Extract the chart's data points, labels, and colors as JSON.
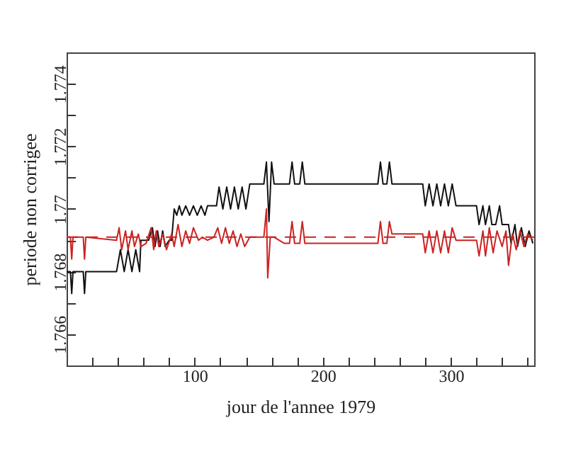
{
  "chart_data": {
    "type": "line",
    "xlabel": "jour de l'annee 1979",
    "ylabel": "periode non corrigee",
    "xlim": [
      0,
      365
    ],
    "ylim": [
      1.765,
      1.775
    ],
    "xticks": [
      {
        "value": 20,
        "label": null
      },
      {
        "value": 40,
        "label": null
      },
      {
        "value": 60,
        "label": null
      },
      {
        "value": 80,
        "label": null
      },
      100,
      {
        "value": 120,
        "label": null
      },
      {
        "value": 140,
        "label": null
      },
      {
        "value": 160,
        "label": null
      },
      {
        "value": 180,
        "label": null
      },
      200,
      {
        "value": 220,
        "label": null
      },
      {
        "value": 240,
        "label": null
      },
      {
        "value": 260,
        "label": null
      },
      {
        "value": 280,
        "label": null
      },
      300,
      {
        "value": 320,
        "label": null
      },
      {
        "value": 340,
        "label": null
      },
      {
        "value": 360,
        "label": null
      }
    ],
    "yticks": [
      1.766,
      {
        "value": 1.767,
        "label": null
      },
      1.768,
      {
        "value": 1.769,
        "label": null
      },
      {
        "value": 1.77,
        "label": "1.77"
      },
      {
        "value": 1.771,
        "label": null
      },
      1.772,
      {
        "value": 1.773,
        "label": null
      },
      1.774
    ],
    "grid": false,
    "marker": "none",
    "line_style": "solid",
    "series": [
      {
        "color": "#111111",
        "x": [
          0,
          3,
          4,
          5,
          13,
          14,
          15,
          39,
          42,
          45,
          48,
          51,
          54,
          57,
          58,
          64,
          67,
          69,
          71,
          73,
          75,
          77,
          80,
          82,
          84,
          86,
          88,
          90,
          93,
          96,
          99,
          102,
          105,
          108,
          110,
          117,
          119,
          122,
          125,
          128,
          131,
          134,
          137,
          140,
          143,
          154,
          156,
          158,
          160,
          162,
          174,
          176,
          178,
          182,
          184,
          186,
          243,
          245,
          247,
          250,
          252,
          254,
          278,
          280,
          283,
          286,
          289,
          292,
          295,
          298,
          301,
          304,
          320,
          322,
          325,
          327,
          330,
          332,
          335,
          338,
          340,
          345,
          347,
          350,
          352,
          355,
          358,
          361,
          364
        ],
        "values": [
          1.768,
          1.768,
          1.7673,
          1.768,
          1.768,
          1.7673,
          1.768,
          1.768,
          1.7687,
          1.768,
          1.7687,
          1.768,
          1.7687,
          1.768,
          1.769,
          1.769,
          1.7694,
          1.7688,
          1.7693,
          1.7688,
          1.7693,
          1.7688,
          1.769,
          1.769,
          1.77,
          1.7698,
          1.7701,
          1.7698,
          1.7701,
          1.7698,
          1.7701,
          1.7698,
          1.7701,
          1.7698,
          1.7701,
          1.7701,
          1.7707,
          1.77,
          1.7707,
          1.77,
          1.7707,
          1.77,
          1.7707,
          1.77,
          1.7708,
          1.7708,
          1.7715,
          1.7696,
          1.7715,
          1.7708,
          1.7708,
          1.7715,
          1.7708,
          1.7708,
          1.7715,
          1.7708,
          1.7708,
          1.7715,
          1.7708,
          1.7708,
          1.7715,
          1.7708,
          1.7708,
          1.7701,
          1.7708,
          1.7701,
          1.7708,
          1.7701,
          1.7708,
          1.7701,
          1.7708,
          1.7701,
          1.7701,
          1.7695,
          1.7701,
          1.7695,
          1.7701,
          1.7695,
          1.7695,
          1.7701,
          1.7695,
          1.7695,
          1.7689,
          1.7695,
          1.7688,
          1.7694,
          1.7688,
          1.7693,
          1.7689
        ]
      },
      {
        "color": "#cc2222",
        "x": [
          0,
          3,
          4,
          5,
          13,
          14,
          15,
          39,
          41,
          43,
          46,
          48,
          51,
          53,
          56,
          58,
          62,
          66,
          68,
          70,
          72,
          75,
          78,
          82,
          84,
          87,
          90,
          93,
          96,
          99,
          103,
          106,
          110,
          115,
          118,
          121,
          124,
          127,
          130,
          133,
          136,
          139,
          143,
          154,
          156,
          157,
          159,
          162,
          170,
          174,
          176,
          178,
          182,
          184,
          186,
          243,
          245,
          247,
          250,
          252,
          254,
          278,
          280,
          283,
          286,
          289,
          292,
          295,
          298,
          301,
          304,
          320,
          322,
          325,
          327,
          330,
          333,
          336,
          340,
          343,
          345,
          348,
          351,
          354,
          357,
          360,
          364
        ],
        "values": [
          1.7691,
          1.7691,
          1.7684,
          1.7691,
          1.7691,
          1.7684,
          1.7691,
          1.769,
          1.7694,
          1.7687,
          1.7693,
          1.7687,
          1.7693,
          1.7688,
          1.7692,
          1.7688,
          1.7689,
          1.7694,
          1.7687,
          1.7693,
          1.7688,
          1.7692,
          1.7687,
          1.7692,
          1.7688,
          1.7695,
          1.7688,
          1.7693,
          1.7689,
          1.7694,
          1.769,
          1.7691,
          1.769,
          1.7691,
          1.7694,
          1.7689,
          1.7694,
          1.7689,
          1.7693,
          1.7688,
          1.7692,
          1.7688,
          1.7691,
          1.7691,
          1.77,
          1.7678,
          1.7691,
          1.7691,
          1.7689,
          1.7689,
          1.7696,
          1.7689,
          1.7689,
          1.7696,
          1.7689,
          1.7689,
          1.7696,
          1.7689,
          1.7689,
          1.7696,
          1.7692,
          1.7692,
          1.7686,
          1.7693,
          1.7686,
          1.7693,
          1.7686,
          1.7693,
          1.7686,
          1.7694,
          1.769,
          1.769,
          1.7685,
          1.7693,
          1.7685,
          1.7694,
          1.7686,
          1.7693,
          1.7688,
          1.7693,
          1.7682,
          1.7692,
          1.7687,
          1.7693,
          1.7688,
          1.7692,
          1.769
        ]
      }
    ],
    "ref_lines": [
      {
        "axis": "y",
        "value": 1.7691,
        "color": "#cc2222",
        "line_style": "dashed"
      }
    ]
  }
}
